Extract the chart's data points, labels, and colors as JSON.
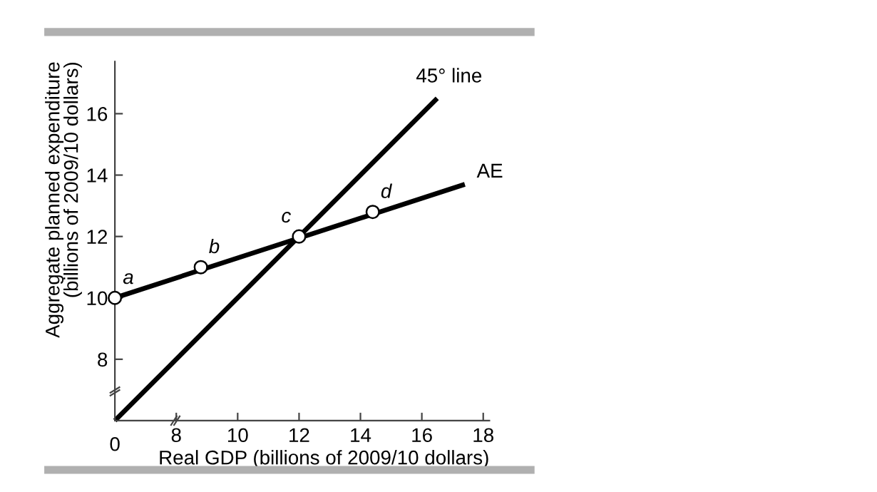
{
  "chart_data": {
    "type": "line",
    "xlabel": "Real GDP (billions of 2009/10 dollars)",
    "ylabel": "Aggregate planned expenditure\n(billions of 2009/10 dollars)",
    "series": [
      {
        "name": "45° line",
        "color": "#000000",
        "x": [
          6,
          16.5
        ],
        "values": [
          6,
          16.5
        ]
      },
      {
        "name": "AE",
        "color": "#000000",
        "x": [
          6,
          17.4
        ],
        "values": [
          10,
          13.7
        ]
      },
      {
        "type": "scatter",
        "marker": "circle",
        "color": "#000000",
        "x": [
          6,
          8.8,
          12,
          14.4
        ],
        "values": [
          10,
          11,
          12,
          12.8
        ]
      }
    ],
    "annotations": [
      "0",
      {
        "text": "a",
        "x": 6,
        "y": 10
      },
      {
        "text": "b",
        "x": 8.8,
        "y": 11
      },
      {
        "text": "c",
        "x": 12,
        "y": 12
      },
      {
        "text": "d",
        "x": 14.4,
        "y": 12.8
      }
    ],
    "xlim": [
      6,
      18.2
    ],
    "ylim": [
      6,
      17.7
    ],
    "xticks": [
      8,
      10,
      12,
      14,
      16,
      18
    ],
    "yticks": [
      8,
      10,
      12,
      14,
      16
    ],
    "grid": false,
    "legend": false,
    "marker": "none",
    "line_style": "solid"
  }
}
